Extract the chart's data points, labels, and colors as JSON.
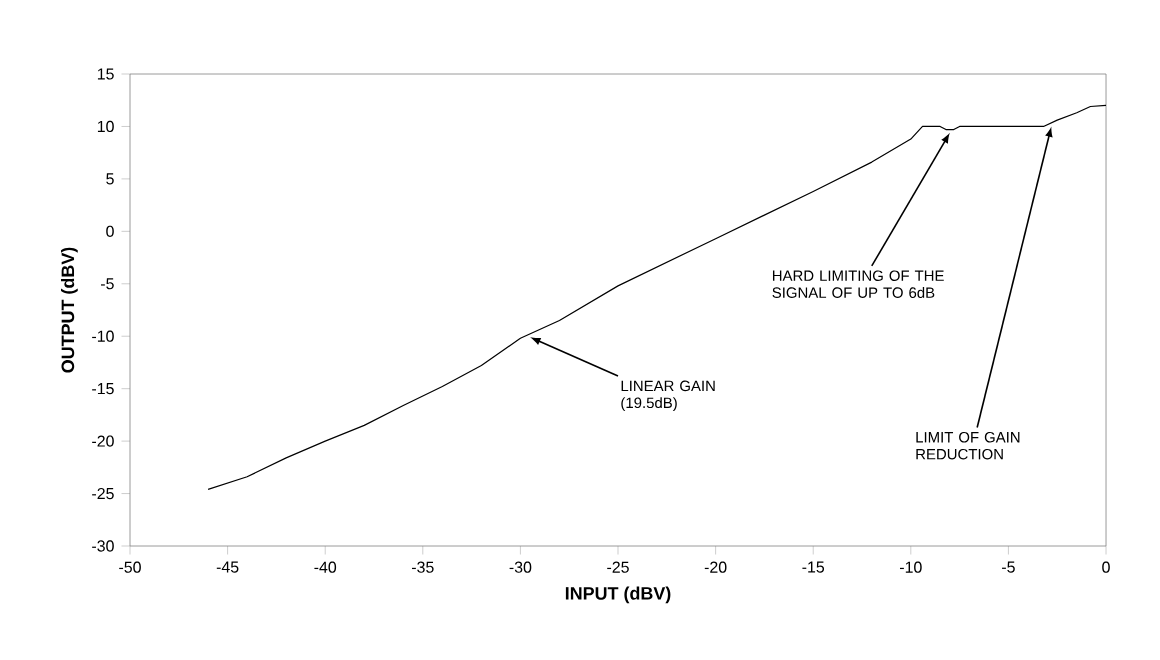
{
  "chart_data": {
    "type": "line",
    "xlabel": "INPUT (dBV)",
    "ylabel": "OUTPUT (dBV)",
    "x": [
      -46,
      -44,
      -42,
      -40,
      -38,
      -36,
      -34,
      -32,
      -30,
      -28,
      -25,
      -20,
      -15,
      -12,
      -10,
      -9.4,
      -8.5,
      -8.2,
      -7.8,
      -7.5,
      -3.2,
      -2.5,
      -1.5,
      -0.8,
      0
    ],
    "values": [
      -24.6,
      -23.4,
      -21.6,
      -20,
      -18.5,
      -16.6,
      -14.8,
      -12.8,
      -10.2,
      -8.5,
      -5.2,
      -0.7,
      3.8,
      6.6,
      8.8,
      10,
      10,
      9.7,
      9.7,
      10,
      10,
      10.6,
      11.3,
      11.9,
      12
    ],
    "color": "#000000",
    "xlim": [
      -50,
      0
    ],
    "xticks": [
      -50,
      -45,
      -40,
      -35,
      -30,
      -25,
      -20,
      -15,
      -10,
      -5,
      0
    ],
    "ylim": [
      -30,
      15
    ],
    "yticks": [
      -30,
      -25,
      -20,
      -15,
      -10,
      -5,
      0,
      5,
      10,
      15
    ],
    "grid": false,
    "annotations": [
      {
        "text": "LINEAR GAIN\n(19.5dB)",
        "x": -29.5,
        "y": -9.8
      },
      {
        "text": "HARD LIMITING OF THE\nSIGNAL OF UP TO 6dB",
        "x": -8,
        "y": 9.7
      },
      {
        "text": "LIMIT OF GAIN\nREDUCTION",
        "x": -2.8,
        "y": 10.3
      }
    ]
  }
}
